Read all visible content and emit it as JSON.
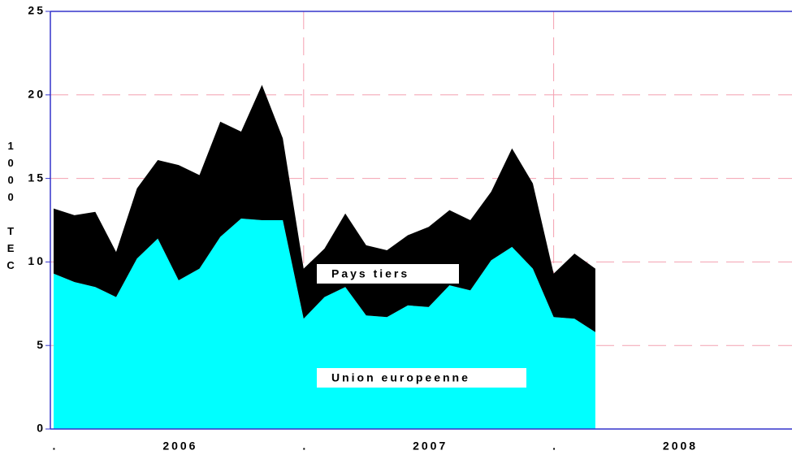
{
  "chart_data": {
    "type": "stacked_area",
    "ylabel": "1000 TEC",
    "categories": [
      null,
      null,
      null,
      null,
      null,
      null,
      null,
      null,
      null,
      null,
      null,
      null,
      null,
      null,
      null,
      null,
      null,
      null,
      null,
      null,
      null,
      null,
      null,
      null,
      null,
      null,
      null
    ],
    "x_axis_labels": [
      ".",
      "2006",
      ".",
      "2007",
      ".",
      "2008"
    ],
    "series": [
      {
        "name": "Union europeenne",
        "color": "#00ffff",
        "values": [
          9.3,
          8.8,
          8.5,
          7.9,
          10.2,
          11.4,
          8.9,
          9.6,
          11.5,
          12.6,
          12.5,
          12.5,
          6.6,
          7.9,
          8.5,
          6.8,
          6.7,
          7.4,
          7.3,
          8.6,
          8.3,
          10.1,
          10.9,
          9.6,
          6.7,
          6.6,
          5.8
        ]
      },
      {
        "name": "Pays tiers",
        "color": "#000000",
        "values": [
          3.9,
          4.0,
          4.5,
          2.7,
          4.2,
          4.7,
          6.9,
          5.6,
          6.9,
          5.2,
          8.1,
          4.9,
          3.0,
          2.9,
          4.4,
          4.2,
          4.0,
          4.2,
          4.8,
          4.5,
          4.2,
          4.1,
          5.9,
          5.1,
          2.6,
          3.9,
          3.8
        ]
      }
    ],
    "ylim": [
      0,
      25
    ],
    "yticks": [
      0,
      5,
      10,
      15,
      20,
      25
    ],
    "grid": true
  }
}
